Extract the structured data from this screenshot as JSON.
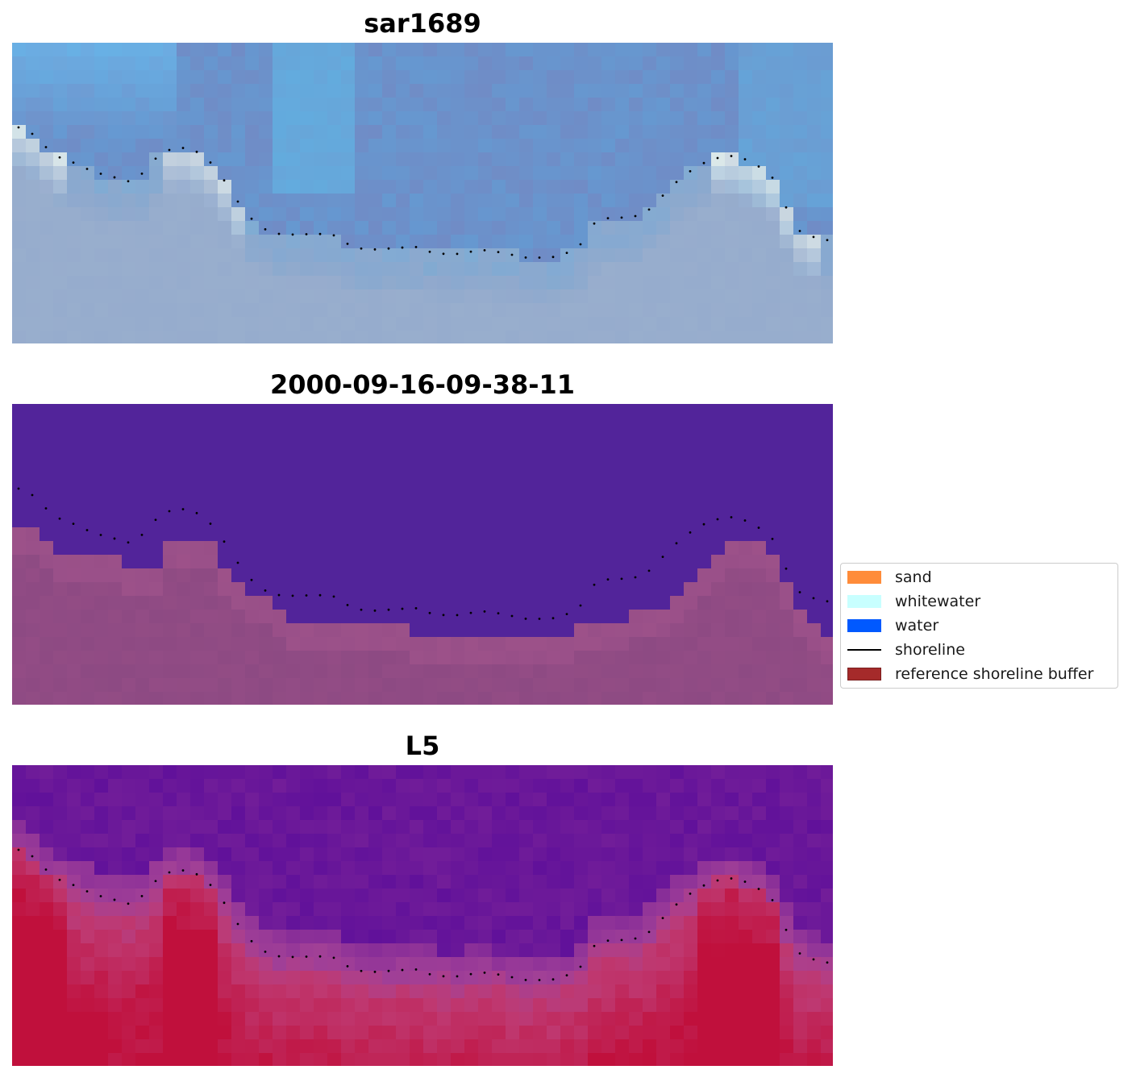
{
  "panels": [
    {
      "title": "sar1689",
      "kind": "rgb"
    },
    {
      "title": "2000-09-16-09-38-11",
      "kind": "classification"
    },
    {
      "title": "L5",
      "kind": "index"
    }
  ],
  "legend": {
    "items": [
      {
        "label": "sand",
        "color": "#ff8c3a",
        "type": "patch"
      },
      {
        "label": "whitewater",
        "color": "#c8ffff",
        "type": "patch"
      },
      {
        "label": "water",
        "color": "#0059ff",
        "type": "patch"
      },
      {
        "label": "shoreline",
        "color": "#000000",
        "type": "line"
      },
      {
        "label": "reference shoreline buffer",
        "color": "#a52a2a",
        "type": "patch"
      }
    ]
  },
  "colors": {
    "classification_water": "#52249a",
    "classification_land": "#8d4a83",
    "index_low": "#5a0c9a",
    "index_high": "#c0103c"
  }
}
